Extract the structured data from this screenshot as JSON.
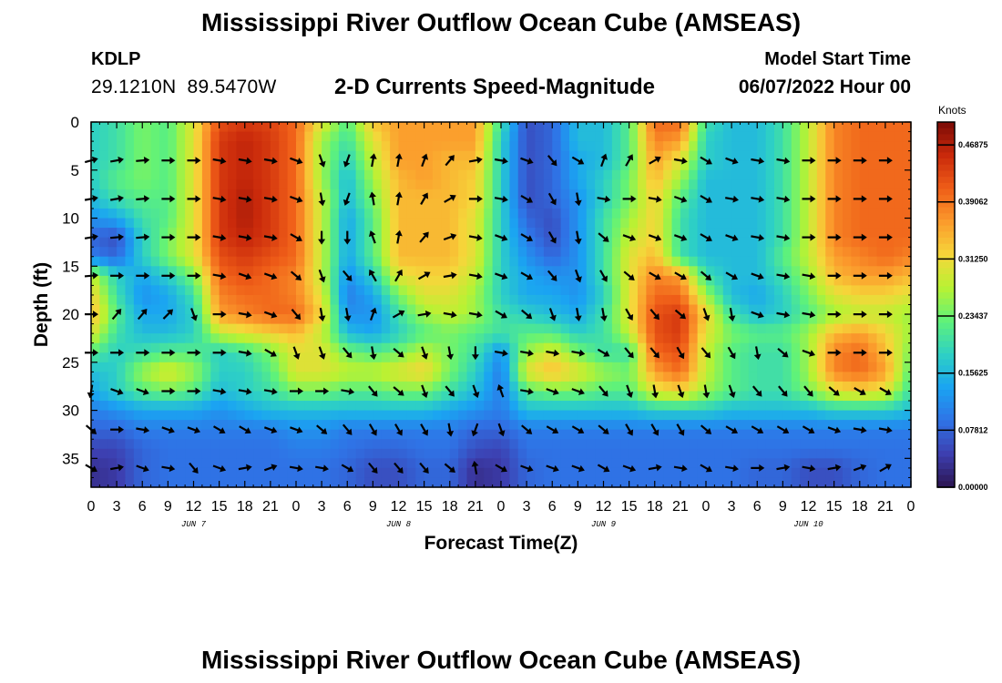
{
  "header": {
    "title": "Mississippi River Outflow Ocean Cube (AMSEAS)",
    "station_id": "KDLP",
    "lat": "29.1210N",
    "lon": "89.5470W",
    "subtitle": "2-D Currents Speed-Magnitude",
    "model_label": "Model Start Time",
    "model_time": "06/07/2022 Hour 00"
  },
  "footer": {
    "title": "Mississippi River Outflow Ocean Cube (AMSEAS)"
  },
  "chart_data": {
    "type": "heatmap",
    "xlabel": "Forecast Time(Z)",
    "ylabel": "Depth (ft)",
    "colorbar_label": "Knots",
    "colorbar_ticks": [
      "0.00000",
      "0.07812",
      "0.15625",
      "0.23437",
      "0.31250",
      "0.39062",
      "0.46875"
    ],
    "colorbar_range": [
      0,
      0.5
    ],
    "xlim": [
      0,
      96
    ],
    "ylim": [
      0,
      38
    ],
    "x_ticks": [
      0,
      3,
      6,
      9,
      12,
      15,
      18,
      21,
      24,
      27,
      30,
      33,
      36,
      39,
      42,
      45,
      48,
      51,
      54,
      57,
      60,
      63,
      66,
      69,
      72,
      75,
      78,
      81,
      84,
      87,
      90,
      93,
      96
    ],
    "x_tick_labels": [
      "0",
      "3",
      "6",
      "9",
      "12",
      "15",
      "18",
      "21",
      "0",
      "3",
      "6",
      "9",
      "12",
      "15",
      "18",
      "21",
      "0",
      "3",
      "6",
      "9",
      "12",
      "15",
      "18",
      "21",
      "0",
      "3",
      "6",
      "9",
      "12",
      "15",
      "18",
      "21",
      "0"
    ],
    "day_labels": [
      {
        "x": 12,
        "label": "JUN 7"
      },
      {
        "x": 36,
        "label": "JUN 8"
      },
      {
        "x": 60,
        "label": "JUN 9"
      },
      {
        "x": 84,
        "label": "JUN 10"
      }
    ],
    "y_ticks": [
      0,
      5,
      10,
      15,
      20,
      25,
      30,
      35
    ],
    "y_tick_labels": [
      "0",
      "5",
      "10",
      "15",
      "20",
      "25",
      "30",
      "35"
    ],
    "colormap": [
      "#2b1450",
      "#3d3fb0",
      "#2f73e6",
      "#1aa4f2",
      "#2ed1c4",
      "#5ff27a",
      "#b8f233",
      "#f6d63a",
      "#fb9a2c",
      "#ef5d18",
      "#c9290b",
      "#7a0a05"
    ],
    "value_grid": {
      "times": [
        0,
        3,
        6,
        9,
        12,
        15,
        18,
        21,
        24,
        27,
        30,
        33,
        36,
        39,
        42,
        45,
        48,
        51,
        54,
        57,
        60,
        63,
        66,
        69,
        72,
        75,
        78,
        81,
        84,
        87,
        90,
        93,
        96
      ],
      "depths": [
        0,
        2,
        4,
        6,
        8,
        10,
        12,
        14,
        16,
        18,
        20,
        22,
        24,
        26,
        28,
        30,
        32,
        34,
        36,
        38
      ],
      "speeds": [
        [
          0.18,
          0.2,
          0.24,
          0.22,
          0.3,
          0.42,
          0.44,
          0.43,
          0.4,
          0.3,
          0.22,
          0.33,
          0.36,
          0.36,
          0.36,
          0.36,
          0.2,
          0.06,
          0.08,
          0.16,
          0.16,
          0.22,
          0.4,
          0.4,
          0.2,
          0.16,
          0.16,
          0.2,
          0.28,
          0.38,
          0.4,
          0.4,
          0.4
        ],
        [
          0.18,
          0.2,
          0.24,
          0.22,
          0.3,
          0.44,
          0.46,
          0.44,
          0.4,
          0.26,
          0.2,
          0.3,
          0.36,
          0.36,
          0.36,
          0.36,
          0.18,
          0.06,
          0.08,
          0.16,
          0.16,
          0.22,
          0.38,
          0.36,
          0.18,
          0.16,
          0.16,
          0.2,
          0.28,
          0.38,
          0.4,
          0.4,
          0.4
        ],
        [
          0.18,
          0.2,
          0.24,
          0.22,
          0.3,
          0.44,
          0.46,
          0.44,
          0.4,
          0.26,
          0.18,
          0.28,
          0.36,
          0.36,
          0.34,
          0.34,
          0.18,
          0.06,
          0.08,
          0.14,
          0.16,
          0.22,
          0.36,
          0.3,
          0.18,
          0.16,
          0.16,
          0.2,
          0.28,
          0.38,
          0.4,
          0.4,
          0.4
        ],
        [
          0.18,
          0.22,
          0.24,
          0.22,
          0.3,
          0.44,
          0.46,
          0.44,
          0.4,
          0.26,
          0.16,
          0.26,
          0.34,
          0.36,
          0.34,
          0.32,
          0.18,
          0.06,
          0.08,
          0.14,
          0.18,
          0.24,
          0.34,
          0.26,
          0.16,
          0.16,
          0.16,
          0.2,
          0.28,
          0.38,
          0.4,
          0.4,
          0.4
        ],
        [
          0.16,
          0.2,
          0.22,
          0.22,
          0.3,
          0.44,
          0.47,
          0.44,
          0.4,
          0.28,
          0.16,
          0.24,
          0.34,
          0.34,
          0.34,
          0.32,
          0.18,
          0.06,
          0.08,
          0.12,
          0.18,
          0.24,
          0.32,
          0.22,
          0.16,
          0.16,
          0.16,
          0.2,
          0.28,
          0.38,
          0.4,
          0.4,
          0.4
        ],
        [
          0.12,
          0.14,
          0.2,
          0.22,
          0.3,
          0.44,
          0.47,
          0.44,
          0.4,
          0.28,
          0.14,
          0.22,
          0.34,
          0.34,
          0.34,
          0.3,
          0.18,
          0.08,
          0.06,
          0.12,
          0.2,
          0.26,
          0.32,
          0.2,
          0.16,
          0.16,
          0.16,
          0.2,
          0.28,
          0.38,
          0.4,
          0.4,
          0.4
        ],
        [
          0.08,
          0.06,
          0.18,
          0.24,
          0.3,
          0.44,
          0.46,
          0.44,
          0.4,
          0.28,
          0.14,
          0.22,
          0.34,
          0.34,
          0.34,
          0.3,
          0.18,
          0.1,
          0.06,
          0.12,
          0.2,
          0.28,
          0.32,
          0.2,
          0.16,
          0.16,
          0.16,
          0.2,
          0.28,
          0.38,
          0.4,
          0.4,
          0.4
        ],
        [
          0.1,
          0.08,
          0.18,
          0.24,
          0.3,
          0.42,
          0.44,
          0.42,
          0.4,
          0.28,
          0.14,
          0.22,
          0.34,
          0.34,
          0.34,
          0.3,
          0.18,
          0.12,
          0.08,
          0.12,
          0.2,
          0.3,
          0.34,
          0.2,
          0.16,
          0.16,
          0.16,
          0.22,
          0.28,
          0.36,
          0.38,
          0.4,
          0.38
        ],
        [
          0.28,
          0.18,
          0.14,
          0.18,
          0.24,
          0.4,
          0.42,
          0.4,
          0.38,
          0.28,
          0.12,
          0.18,
          0.3,
          0.32,
          0.32,
          0.28,
          0.18,
          0.14,
          0.12,
          0.12,
          0.2,
          0.3,
          0.38,
          0.36,
          0.2,
          0.16,
          0.16,
          0.2,
          0.26,
          0.34,
          0.36,
          0.36,
          0.34
        ],
        [
          0.32,
          0.2,
          0.12,
          0.14,
          0.2,
          0.38,
          0.4,
          0.4,
          0.38,
          0.3,
          0.1,
          0.14,
          0.24,
          0.3,
          0.3,
          0.26,
          0.18,
          0.14,
          0.14,
          0.12,
          0.18,
          0.3,
          0.4,
          0.4,
          0.26,
          0.16,
          0.14,
          0.18,
          0.24,
          0.3,
          0.32,
          0.32,
          0.3
        ],
        [
          0.34,
          0.22,
          0.14,
          0.14,
          0.18,
          0.36,
          0.38,
          0.4,
          0.4,
          0.32,
          0.12,
          0.12,
          0.2,
          0.26,
          0.28,
          0.26,
          0.2,
          0.18,
          0.16,
          0.14,
          0.2,
          0.3,
          0.42,
          0.44,
          0.32,
          0.2,
          0.16,
          0.18,
          0.22,
          0.26,
          0.28,
          0.28,
          0.26
        ],
        [
          0.3,
          0.2,
          0.16,
          0.16,
          0.18,
          0.28,
          0.3,
          0.32,
          0.34,
          0.28,
          0.16,
          0.14,
          0.18,
          0.22,
          0.24,
          0.22,
          0.2,
          0.22,
          0.22,
          0.18,
          0.2,
          0.28,
          0.42,
          0.44,
          0.3,
          0.24,
          0.22,
          0.22,
          0.26,
          0.34,
          0.36,
          0.32,
          0.26
        ],
        [
          0.22,
          0.18,
          0.2,
          0.22,
          0.22,
          0.18,
          0.2,
          0.24,
          0.3,
          0.3,
          0.24,
          0.22,
          0.24,
          0.28,
          0.24,
          0.2,
          0.12,
          0.26,
          0.3,
          0.24,
          0.2,
          0.2,
          0.4,
          0.42,
          0.28,
          0.22,
          0.2,
          0.2,
          0.26,
          0.38,
          0.4,
          0.34,
          0.24
        ],
        [
          0.16,
          0.18,
          0.26,
          0.3,
          0.26,
          0.18,
          0.18,
          0.22,
          0.3,
          0.3,
          0.28,
          0.28,
          0.3,
          0.32,
          0.24,
          0.18,
          0.1,
          0.3,
          0.34,
          0.3,
          0.26,
          0.24,
          0.36,
          0.4,
          0.28,
          0.22,
          0.2,
          0.2,
          0.26,
          0.38,
          0.4,
          0.36,
          0.22
        ],
        [
          0.14,
          0.18,
          0.22,
          0.24,
          0.22,
          0.16,
          0.18,
          0.2,
          0.24,
          0.24,
          0.22,
          0.22,
          0.24,
          0.24,
          0.2,
          0.16,
          0.1,
          0.22,
          0.24,
          0.24,
          0.22,
          0.22,
          0.3,
          0.32,
          0.26,
          0.22,
          0.2,
          0.2,
          0.24,
          0.3,
          0.32,
          0.3,
          0.2
        ],
        [
          0.1,
          0.12,
          0.14,
          0.14,
          0.14,
          0.12,
          0.14,
          0.16,
          0.16,
          0.16,
          0.16,
          0.16,
          0.16,
          0.16,
          0.14,
          0.12,
          0.1,
          0.16,
          0.16,
          0.16,
          0.16,
          0.16,
          0.18,
          0.18,
          0.18,
          0.16,
          0.16,
          0.16,
          0.16,
          0.18,
          0.18,
          0.18,
          0.16
        ],
        [
          0.08,
          0.08,
          0.1,
          0.1,
          0.1,
          0.1,
          0.1,
          0.1,
          0.12,
          0.12,
          0.1,
          0.1,
          0.1,
          0.1,
          0.1,
          0.08,
          0.08,
          0.1,
          0.1,
          0.1,
          0.1,
          0.1,
          0.1,
          0.1,
          0.1,
          0.1,
          0.1,
          0.1,
          0.1,
          0.1,
          0.1,
          0.1,
          0.1
        ],
        [
          0.05,
          0.05,
          0.08,
          0.09,
          0.09,
          0.09,
          0.09,
          0.09,
          0.1,
          0.1,
          0.09,
          0.08,
          0.08,
          0.09,
          0.09,
          0.06,
          0.05,
          0.09,
          0.09,
          0.09,
          0.09,
          0.09,
          0.09,
          0.09,
          0.09,
          0.09,
          0.09,
          0.09,
          0.09,
          0.09,
          0.09,
          0.09,
          0.09
        ],
        [
          0.03,
          0.04,
          0.08,
          0.09,
          0.09,
          0.09,
          0.09,
          0.09,
          0.09,
          0.09,
          0.08,
          0.06,
          0.06,
          0.08,
          0.08,
          0.03,
          0.04,
          0.08,
          0.09,
          0.09,
          0.09,
          0.09,
          0.09,
          0.09,
          0.09,
          0.09,
          0.08,
          0.08,
          0.06,
          0.06,
          0.08,
          0.09,
          0.09
        ],
        [
          0.03,
          0.04,
          0.08,
          0.09,
          0.09,
          0.09,
          0.09,
          0.09,
          0.09,
          0.09,
          0.08,
          0.06,
          0.06,
          0.08,
          0.08,
          0.03,
          0.04,
          0.08,
          0.09,
          0.09,
          0.09,
          0.09,
          0.09,
          0.09,
          0.09,
          0.09,
          0.08,
          0.08,
          0.06,
          0.06,
          0.08,
          0.09,
          0.09
        ]
      ]
    },
    "vectors": {
      "depths": [
        4,
        8,
        12,
        16,
        20,
        24,
        28,
        32,
        36
      ],
      "times": [
        0,
        3,
        6,
        9,
        12,
        15,
        18,
        21,
        24,
        27,
        30,
        33,
        36,
        39,
        42,
        45,
        48,
        51,
        54,
        57,
        60,
        63,
        66,
        69,
        72,
        75,
        78,
        81,
        84,
        87,
        90,
        93
      ],
      "directions_deg": [
        [
          75,
          80,
          85,
          90,
          90,
          100,
          100,
          100,
          110,
          160,
          200,
          10,
          10,
          20,
          40,
          80,
          100,
          110,
          140,
          120,
          20,
          30,
          60,
          100,
          120,
          110,
          100,
          100,
          90,
          90,
          90,
          90
        ],
        [
          80,
          80,
          85,
          90,
          90,
          100,
          100,
          100,
          110,
          170,
          200,
          350,
          10,
          30,
          60,
          90,
          100,
          120,
          150,
          170,
          100,
          90,
          100,
          110,
          120,
          100,
          100,
          100,
          90,
          90,
          90,
          90
        ],
        [
          80,
          85,
          85,
          90,
          90,
          100,
          100,
          100,
          120,
          180,
          180,
          340,
          10,
          40,
          70,
          100,
          110,
          120,
          150,
          170,
          130,
          110,
          110,
          110,
          120,
          110,
          100,
          100,
          90,
          90,
          90,
          90
        ],
        [
          85,
          90,
          90,
          90,
          90,
          100,
          110,
          110,
          130,
          160,
          140,
          330,
          30,
          60,
          80,
          100,
          110,
          120,
          140,
          160,
          150,
          130,
          120,
          120,
          130,
          120,
          110,
          100,
          100,
          90,
          90,
          90
        ],
        [
          90,
          40,
          40,
          45,
          160,
          90,
          100,
          110,
          140,
          170,
          170,
          20,
          60,
          80,
          100,
          100,
          120,
          130,
          160,
          170,
          170,
          150,
          140,
          130,
          160,
          170,
          110,
          100,
          100,
          90,
          90,
          90
        ],
        [
          90,
          90,
          90,
          90,
          90,
          90,
          100,
          120,
          160,
          160,
          140,
          170,
          130,
          160,
          170,
          180,
          100,
          100,
          100,
          100,
          120,
          140,
          140,
          150,
          140,
          150,
          170,
          130,
          110,
          90,
          90,
          90
        ],
        [
          190,
          110,
          110,
          90,
          90,
          100,
          100,
          100,
          90,
          90,
          100,
          140,
          130,
          160,
          140,
          160,
          340,
          100,
          110,
          110,
          140,
          160,
          170,
          160,
          170,
          160,
          140,
          140,
          140,
          130,
          120,
          120
        ],
        [
          130,
          90,
          100,
          110,
          110,
          120,
          120,
          110,
          110,
          130,
          140,
          150,
          150,
          150,
          170,
          200,
          160,
          130,
          120,
          120,
          130,
          150,
          150,
          150,
          130,
          120,
          120,
          120,
          120,
          110,
          100,
          100
        ],
        [
          120,
          80,
          110,
          100,
          140,
          110,
          80,
          70,
          100,
          100,
          120,
          140,
          140,
          140,
          130,
          350,
          120,
          110,
          110,
          110,
          120,
          110,
          80,
          100,
          120,
          100,
          90,
          80,
          100,
          80,
          70,
          60
        ]
      ]
    }
  }
}
